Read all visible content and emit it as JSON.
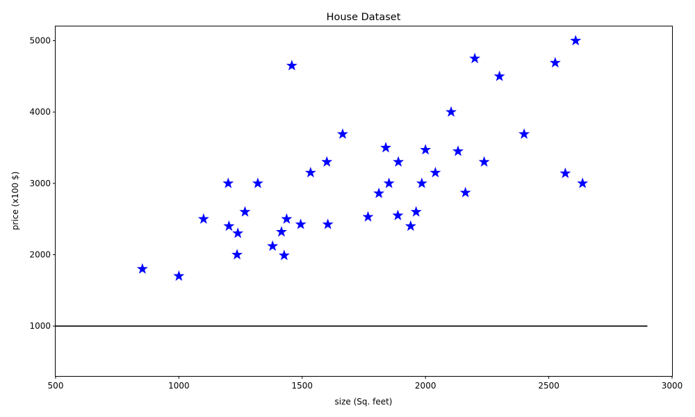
{
  "chart_data": {
    "type": "scatter",
    "title": "House Dataset",
    "xlabel": "size (Sq. feet)",
    "ylabel": "price (x100 $)",
    "xlim": [
      500,
      3000
    ],
    "ylim": [
      300,
      5200
    ],
    "xticks": [
      500,
      1000,
      1500,
      2000,
      2500,
      3000
    ],
    "yticks": [
      1000,
      2000,
      3000,
      4000,
      5000
    ],
    "grid": false,
    "marker": "star",
    "marker_color": "#0000ff",
    "series": [
      {
        "points": [
          [
            852,
            1800
          ],
          [
            1000,
            1700
          ],
          [
            1100,
            2500
          ],
          [
            1200,
            3000
          ],
          [
            1203,
            2400
          ],
          [
            1236,
            2000
          ],
          [
            1239,
            2300
          ],
          [
            1268,
            2600
          ],
          [
            1320,
            3000
          ],
          [
            1380,
            2120
          ],
          [
            1416,
            2320
          ],
          [
            1427,
            1990
          ],
          [
            1437,
            2500
          ],
          [
            1458,
            4650
          ],
          [
            1494,
            2425
          ],
          [
            1534,
            3150
          ],
          [
            1600,
            3300
          ],
          [
            1604,
            2425
          ],
          [
            1664,
            3690
          ],
          [
            1767,
            2530
          ],
          [
            1811,
            2860
          ],
          [
            1839,
            3500
          ],
          [
            1852,
            3000
          ],
          [
            1888,
            2550
          ],
          [
            1890,
            3300
          ],
          [
            1940,
            2400
          ],
          [
            1962,
            2600
          ],
          [
            1985,
            3000
          ],
          [
            2000,
            3470
          ],
          [
            2040,
            3150
          ],
          [
            2104,
            4000
          ],
          [
            2132,
            3450
          ],
          [
            2162,
            2870
          ],
          [
            2200,
            4750
          ],
          [
            2238,
            3300
          ],
          [
            2300,
            4500
          ],
          [
            2400,
            3690
          ],
          [
            2526,
            4690
          ],
          [
            2567,
            3140
          ],
          [
            2609,
            5000
          ],
          [
            2637,
            3000
          ]
        ]
      }
    ],
    "reference_line": {
      "y": 1000,
      "x_from": 500,
      "x_to": 2900,
      "color": "#000000"
    }
  }
}
